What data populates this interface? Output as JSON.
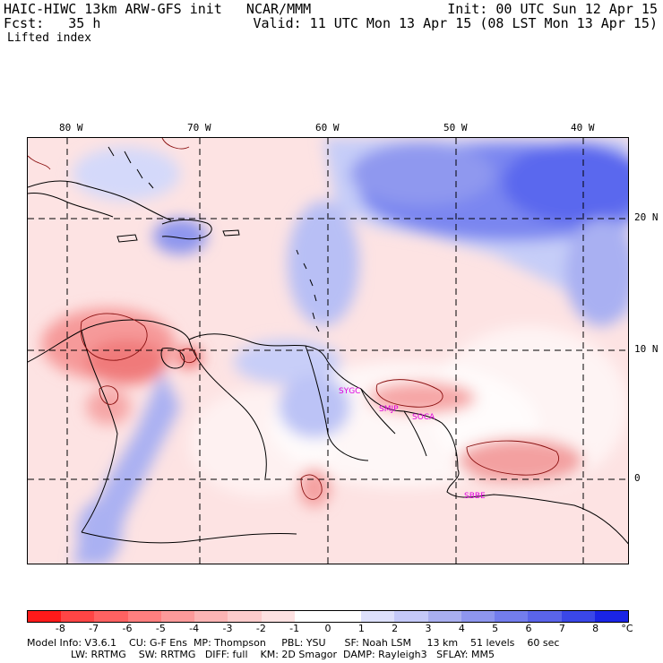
{
  "header": {
    "line1_left": "HAIC-HIWC 13km ARW-GFS init   NCAR/MMM",
    "line1_right": "Init: 00 UTC Sun 12 Apr 15",
    "line2_left": "Fcst:   35 h",
    "line2_right": "Valid: 11 UTC Mon 13 Apr 15 (08 LST Mon 13 Apr 15)",
    "field_name": "Lifted index"
  },
  "map": {
    "lon_labels": [
      "80 W",
      "70 W",
      "60 W",
      "50 W",
      "40 W"
    ],
    "lat_labels": [
      "20 N",
      "10 N",
      "0"
    ],
    "stations": [
      "SYGC",
      "SMJP",
      "SOCA",
      "SBBE"
    ],
    "colors": {
      "strong_negative": "#f06060",
      "weak_negative": "#fbd6d6",
      "neutral": "#ffffff",
      "weak_positive": "#c6cdf8",
      "strong_positive": "#5a67ee"
    }
  },
  "colorbar": {
    "colors": [
      "#ff1a1a",
      "#ff4545",
      "#ff6262",
      "#ff7f7f",
      "#fc9a9a",
      "#fbb4b4",
      "#fccbcb",
      "#fde1e1",
      "#ffffff",
      "#ffffff",
      "#dde0fb",
      "#c4c9f8",
      "#a9afef",
      "#8e96ee",
      "#737ded",
      "#5a64ea",
      "#3a47e8",
      "#1a24e6"
    ],
    "labels": [
      "-8",
      "-7",
      "-6",
      "-5",
      "-4",
      "-3",
      "-2",
      "-1",
      "0",
      "1",
      "2",
      "3",
      "4",
      "5",
      "6",
      "7",
      "8"
    ],
    "unit": "°C"
  },
  "footer": {
    "line1": "Model Info: V3.6.1    CU: G-F Ens  MP: Thompson     PBL: YSU      SF: Noah LSM     13 km    51 levels    60 sec",
    "line2": "              LW: RRTMG    SW: RRTMG   DIFF: full    KM: 2D Smagor  DAMP: Rayleigh3   SFLAY: MM5"
  }
}
